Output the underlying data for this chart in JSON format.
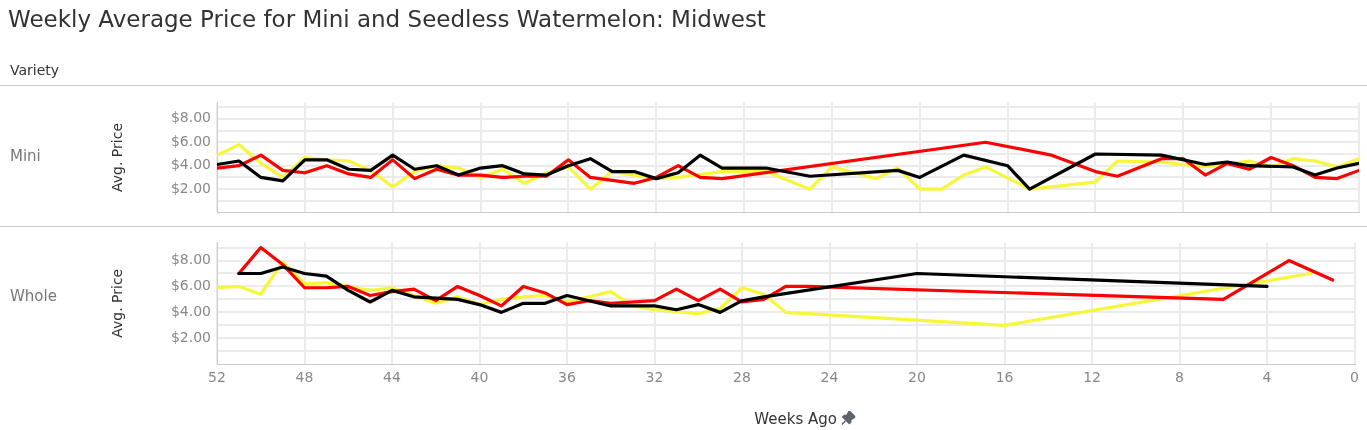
{
  "chart_data": [
    {
      "type": "line",
      "title": "Weekly Average Price for Mini and Seedless Watermelon: Midwest",
      "annotations": [
        "Variety",
        "Mini"
      ],
      "ylabel": "Avg. Price",
      "xlim": [
        52,
        0
      ],
      "xticks": [
        52,
        48,
        44,
        40,
        36,
        32,
        28,
        24,
        20,
        16,
        12,
        8,
        4,
        0
      ],
      "ylim": [
        0,
        9.4
      ],
      "yticks": [
        {
          "value": 1,
          "label": null
        },
        {
          "value": 2,
          "label": "$2.00"
        },
        {
          "value": 3,
          "label": null
        },
        {
          "value": 4,
          "label": "$4.00"
        },
        {
          "value": 5,
          "label": null
        },
        {
          "value": 6,
          "label": "$6.00"
        },
        {
          "value": 7,
          "label": null
        },
        {
          "value": 8,
          "label": "$8.00"
        },
        {
          "value": 9,
          "label": null
        }
      ],
      "grid": true,
      "tick_labels": "y",
      "line_style": "solid",
      "series": [
        {
          "color": "#000000",
          "x": [
            52,
            51,
            50,
            49,
            48,
            47,
            46,
            45,
            44,
            43,
            42,
            41,
            40,
            39,
            38,
            37,
            36,
            35,
            34,
            33,
            32,
            31,
            30,
            29,
            27,
            25,
            21,
            20,
            18,
            16,
            15,
            12,
            9,
            7,
            6,
            5,
            3,
            2,
            1,
            0
          ],
          "values": [
            4.1,
            4.4,
            3.0,
            2.7,
            4.5,
            4.5,
            3.7,
            3.6,
            4.9,
            3.7,
            4.0,
            3.2,
            3.8,
            4.0,
            3.3,
            3.2,
            4.0,
            4.6,
            3.5,
            3.5,
            2.9,
            3.4,
            4.9,
            3.8,
            3.8,
            3.1,
            3.6,
            3.0,
            4.9,
            4.0,
            2.0,
            5.0,
            4.9,
            4.1,
            4.3,
            4.0,
            3.9,
            3.2,
            3.8,
            4.2
          ]
        },
        {
          "color": "#ff0000",
          "x": [
            52,
            51,
            50,
            49,
            48,
            47,
            46,
            45,
            44,
            43,
            42,
            41,
            40,
            39,
            38,
            37,
            36,
            35,
            33,
            32,
            31,
            30,
            29,
            17,
            14,
            12,
            11,
            9,
            8,
            7,
            6,
            5,
            4,
            3,
            2,
            1,
            0
          ],
          "values": [
            3.8,
            4.0,
            4.9,
            3.6,
            3.4,
            4.0,
            3.3,
            3.0,
            4.5,
            2.9,
            3.7,
            3.2,
            3.2,
            3.0,
            3.1,
            3.1,
            4.5,
            3.0,
            2.5,
            3.0,
            4.0,
            3.0,
            2.9,
            6.0,
            4.9,
            3.5,
            3.1,
            4.6,
            4.6,
            3.2,
            4.2,
            3.7,
            4.7,
            4.0,
            3.0,
            2.9,
            3.6
          ]
        },
        {
          "color": "#f7f73a",
          "x": [
            52,
            51,
            50,
            49,
            48,
            47,
            46,
            45,
            44,
            43,
            42,
            41,
            40,
            39,
            38,
            37,
            36,
            35,
            34,
            33,
            32,
            31,
            29,
            27,
            25,
            24,
            22,
            21,
            20,
            19,
            18,
            17,
            15,
            12,
            11,
            9,
            7,
            5,
            4,
            3,
            2,
            1,
            0
          ],
          "values": [
            4.9,
            5.8,
            4.2,
            3.0,
            4.7,
            4.5,
            4.4,
            3.6,
            2.2,
            3.5,
            4.0,
            3.8,
            3.0,
            3.7,
            2.5,
            3.4,
            3.9,
            2.0,
            3.5,
            3.2,
            2.9,
            3.0,
            3.5,
            3.5,
            2.0,
            3.9,
            2.9,
            3.8,
            2.0,
            2.0,
            3.2,
            3.9,
            2.0,
            2.6,
            4.4,
            4.3,
            3.9,
            4.4,
            3.9,
            4.6,
            4.4,
            3.9,
            4.6
          ]
        }
      ]
    },
    {
      "type": "line",
      "annotations": [
        "Whole"
      ],
      "ylabel": "Avg. Price",
      "xlabel": "Weeks Ago",
      "xlim": [
        52,
        0
      ],
      "xticks": [
        52,
        48,
        44,
        40,
        36,
        32,
        28,
        24,
        20,
        16,
        12,
        8,
        4,
        0
      ],
      "ylim": [
        0,
        9.4
      ],
      "yticks": [
        {
          "value": 1,
          "label": null
        },
        {
          "value": 2,
          "label": "$2.00"
        },
        {
          "value": 3,
          "label": null
        },
        {
          "value": 4,
          "label": "$4.00"
        },
        {
          "value": 5,
          "label": null
        },
        {
          "value": 6,
          "label": "$6.00"
        },
        {
          "value": 7,
          "label": null
        },
        {
          "value": 8,
          "label": "$8.00"
        },
        {
          "value": 9,
          "label": null
        }
      ],
      "grid": true,
      "line_style": "solid",
      "series": [
        {
          "color": "#000000",
          "x": [
            51,
            50,
            49,
            48,
            47,
            46,
            45,
            44,
            43,
            42,
            41,
            40,
            39,
            38,
            37,
            36,
            35,
            34,
            32,
            31,
            30,
            29,
            28,
            27,
            20,
            4
          ],
          "values": [
            7.0,
            7.0,
            7.5,
            7.0,
            6.8,
            5.7,
            4.8,
            5.7,
            5.2,
            5.1,
            5.0,
            4.6,
            4.0,
            4.7,
            4.7,
            5.3,
            4.9,
            4.5,
            4.5,
            4.2,
            4.6,
            4.0,
            4.9,
            5.2,
            7.0,
            6.0
          ]
        },
        {
          "color": "#ff0000",
          "x": [
            51,
            50,
            49,
            48,
            47,
            46,
            45,
            44,
            43,
            42,
            41,
            40,
            39,
            38,
            37,
            36,
            35,
            34,
            32,
            31,
            30,
            29,
            28,
            27,
            26,
            25,
            6,
            3,
            1
          ],
          "values": [
            7.0,
            9.0,
            7.7,
            5.9,
            5.9,
            6.0,
            5.3,
            5.6,
            5.8,
            4.9,
            6.0,
            5.3,
            4.5,
            6.0,
            5.5,
            4.6,
            4.9,
            4.7,
            4.9,
            5.8,
            4.9,
            5.8,
            4.8,
            5.0,
            6.0,
            6.0,
            5.0,
            8.0,
            6.5
          ]
        },
        {
          "color": "#f7f73a",
          "x": [
            52,
            51,
            50,
            49,
            48,
            47,
            46,
            45,
            44,
            43,
            42,
            41,
            40,
            39,
            38,
            37,
            36,
            34,
            33,
            32,
            30,
            29,
            28,
            27,
            26,
            16,
            2
          ],
          "values": [
            5.9,
            6.0,
            5.4,
            7.9,
            6.2,
            6.3,
            6.0,
            5.7,
            5.9,
            5.3,
            4.7,
            5.2,
            4.6,
            5.0,
            5.2,
            5.3,
            4.8,
            5.6,
            4.5,
            4.2,
            3.9,
            4.3,
            5.9,
            5.4,
            4.0,
            3.0,
            7.0
          ]
        }
      ]
    }
  ]
}
